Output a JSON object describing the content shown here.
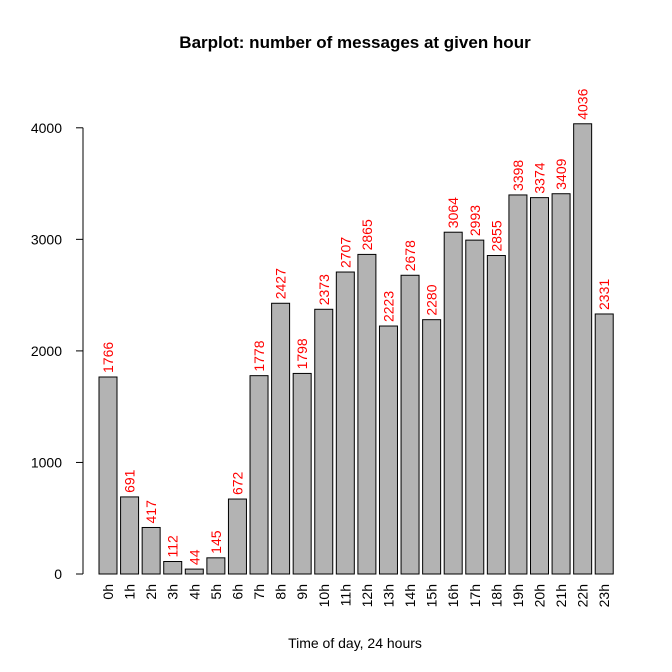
{
  "chart_data": {
    "type": "bar",
    "title": "Barplot: number of messages at given hour",
    "xlabel": "Time of day, 24 hours",
    "ylabel": "",
    "categories": [
      "0h",
      "1h",
      "2h",
      "3h",
      "4h",
      "5h",
      "6h",
      "7h",
      "8h",
      "9h",
      "10h",
      "11h",
      "12h",
      "13h",
      "14h",
      "15h",
      "16h",
      "17h",
      "18h",
      "19h",
      "20h",
      "21h",
      "22h",
      "23h"
    ],
    "values": [
      1766,
      691,
      417,
      112,
      44,
      145,
      672,
      1778,
      2427,
      1798,
      2373,
      2707,
      2865,
      2223,
      2678,
      2280,
      3064,
      2993,
      2855,
      3398,
      3374,
      3409,
      4036,
      2331
    ],
    "yticks": [
      0,
      1000,
      2000,
      3000,
      4000
    ],
    "ylim": [
      0,
      4036
    ],
    "grid": false,
    "legend": "none",
    "colors": {
      "bar_fill": "#b3b3b3",
      "bar_stroke": "#000000",
      "data_label": "#ff0000"
    }
  }
}
